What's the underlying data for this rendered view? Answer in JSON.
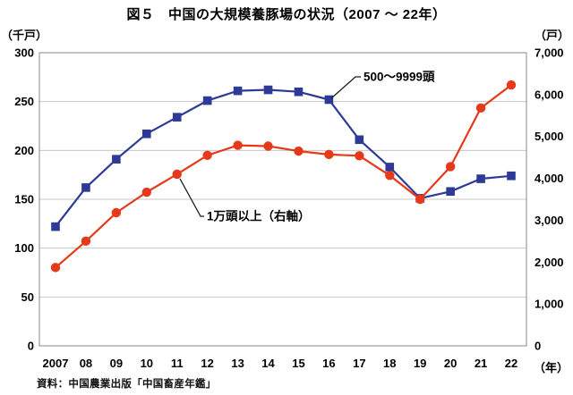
{
  "header": {
    "title": "図５　中国の大規模養豚場の状況（2007 ～ 22年）"
  },
  "axes": {
    "left_unit": "（千戸）",
    "right_unit": "（戸）",
    "x_unit": "（年）"
  },
  "source": "資料：中国農業出版「中国畜産年鑑」",
  "chart_data": {
    "type": "line",
    "title": "図５　中国の大規模養豚場の状況（2007 ～ 22年）",
    "categories": [
      "2007",
      "08",
      "09",
      "10",
      "11",
      "12",
      "13",
      "14",
      "15",
      "16",
      "17",
      "18",
      "19",
      "20",
      "21",
      "22"
    ],
    "series": [
      {
        "name": "500～9999頭",
        "axis": "left",
        "unit": "千戸",
        "color": "#2e3a96",
        "marker": "square",
        "values": [
          122,
          162,
          191,
          217,
          234,
          251,
          261,
          262,
          260,
          252,
          211,
          183,
          151,
          158,
          171,
          174
        ]
      },
      {
        "name": "1万頭以上（右軸）",
        "axis": "right",
        "unit": "戸",
        "color": "#e5391a",
        "marker": "circle",
        "values": [
          1870,
          2500,
          3180,
          3670,
          4100,
          4550,
          4790,
          4770,
          4650,
          4570,
          4540,
          4070,
          3500,
          4280,
          5680,
          6230
        ]
      }
    ],
    "left_axis": {
      "label": "（千戸）",
      "min": 0,
      "max": 300,
      "step": 50,
      "tick_labels": [
        "0",
        "50",
        "100",
        "150",
        "200",
        "250",
        "300"
      ]
    },
    "right_axis": {
      "label": "（戸）",
      "min": 0,
      "max": 7000,
      "step": 1000,
      "tick_labels": [
        "0",
        "1,000",
        "2,000",
        "3,000",
        "4,000",
        "5,000",
        "6,000",
        "7,000"
      ]
    },
    "x_axis": {
      "label": "（年）"
    },
    "grid": "horizontal",
    "legend": "inline-annotations",
    "annotations": [
      {
        "text": "500～9999頭",
        "series": 0,
        "year": "16"
      },
      {
        "text": "1万頭以上（右軸）",
        "series": 1,
        "year": "11"
      }
    ],
    "grid_color": "#c6c6c6",
    "border_color": "#9c9c9c",
    "annotation_line_color": "#1a1a1a"
  }
}
